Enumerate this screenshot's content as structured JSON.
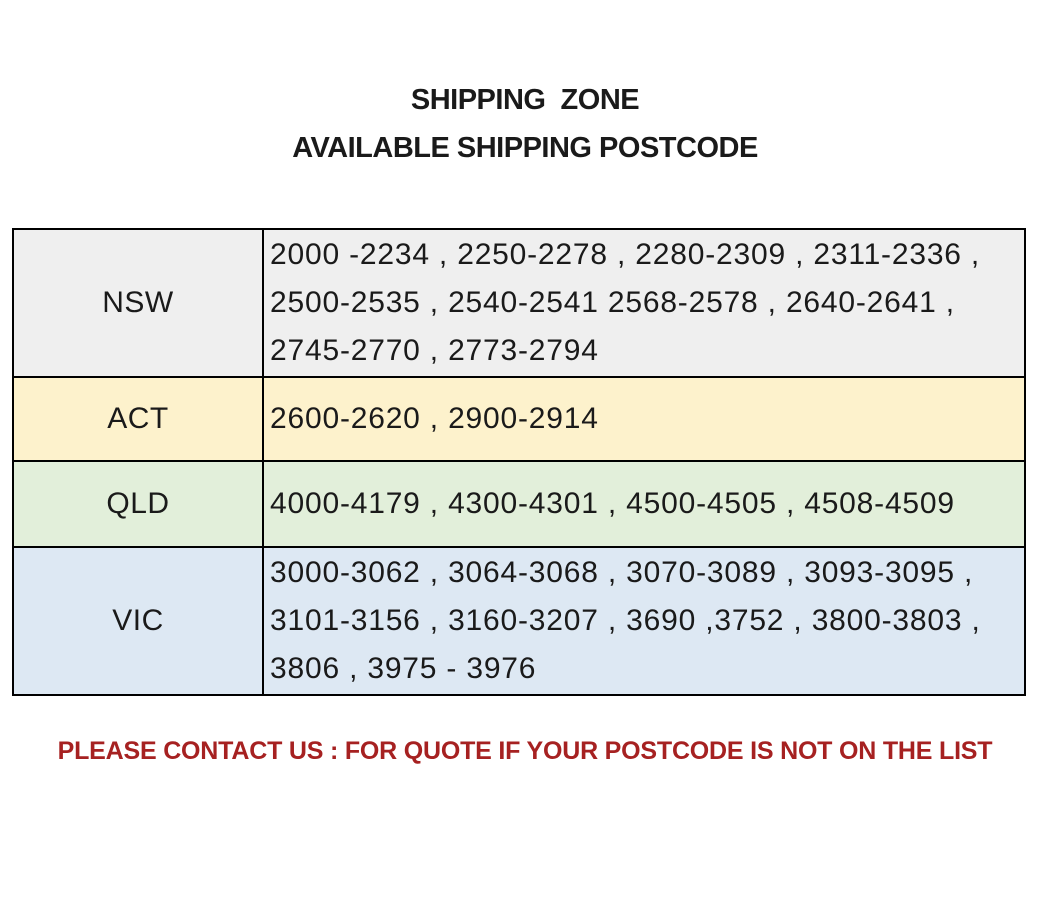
{
  "page": {
    "title_line1": "SHIPPING  ZONE",
    "title_line2": "AVAILABLE SHIPPING POSTCODE",
    "footer": "PLEASE CONTACT US : FOR QUOTE IF YOUR POSTCODE IS NOT ON THE LIST"
  },
  "colors": {
    "title_text": "#1a1a1a",
    "footer_text": "#A62121",
    "table_border": "#000000",
    "nsw_bg": "#EFEFEF",
    "act_bg": "#FDF2CC",
    "qld_bg": "#E2EFDA",
    "vic_bg": "#DDE8F3"
  },
  "table": {
    "rows": [
      {
        "zone": "NSW",
        "bg": "#EFEFEF",
        "lines": [
          "2000 -2234 , 2250-2278 , 2280-2309 , 2311-2336 ,",
          "2500-2535 , 2540-2541 2568-2578 , 2640-2641 ,",
          "2745-2770 , 2773-2794"
        ]
      },
      {
        "zone": "ACT",
        "bg": "#FDF2CC",
        "lines": [
          "2600-2620 , 2900-2914"
        ]
      },
      {
        "zone": "QLD",
        "bg": "#E2EFDA",
        "lines": [
          "4000-4179 , 4300-4301 , 4500-4505 , 4508-4509"
        ]
      },
      {
        "zone": "VIC",
        "bg": "#DDE8F3",
        "lines": [
          "3000-3062 , 3064-3068 , 3070-3089 , 3093-3095 ,",
          "3101-3156 , 3160-3207 , 3690 ,3752 , 3800-3803 ,",
          "3806 , 3975 - 3976"
        ]
      }
    ]
  }
}
